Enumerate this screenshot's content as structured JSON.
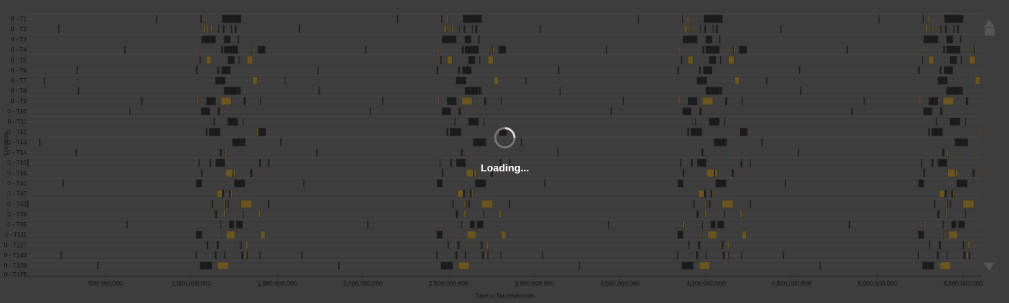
{
  "timeline": {
    "row_labels": [
      "0 - T1",
      "0 - T2",
      "0 - T3",
      "0 - T4",
      "0 - T5",
      "0 - T6",
      "0 - T7",
      "0 - T8",
      "0 - T9",
      "0 - T10",
      "0 - T11",
      "0 - T12",
      "0 - T13",
      "0 - T14",
      "0 - T15",
      "0 - T16",
      "0 - T31",
      "0 - T47",
      "0 - T63",
      "0 - T79",
      "0 - T95",
      "0 - T111",
      "0 - T127",
      "0 - T143",
      "0 - T159",
      "0 - T175"
    ],
    "x_axis_label": "Time in Nanoseconds",
    "y_axis_label": "Location",
    "xlim": [
      44000000,
      5612000000
    ],
    "xticks": [
      {
        "value": 500000000,
        "label": "500,000,000"
      },
      {
        "value": 1000000000,
        "label": "1,000,000,000"
      },
      {
        "value": 1500000000,
        "label": "1,500,000,000"
      },
      {
        "value": 2000000000,
        "label": "2,000,000,000"
      },
      {
        "value": 2500000000,
        "label": "2,500,000,000"
      },
      {
        "value": 3000000000,
        "label": "3,000,000,000"
      },
      {
        "value": 3500000000,
        "label": "3,500,000,000"
      },
      {
        "value": 4000000000,
        "label": "4,000,000,000"
      },
      {
        "value": 4500000000,
        "label": "4,500,000,000"
      },
      {
        "value": 5000000000,
        "label": "5,000,000,000"
      },
      {
        "value": 5500000000,
        "label": "5,500,000,000"
      }
    ]
  },
  "overlay": {
    "message": "Loading..."
  }
}
